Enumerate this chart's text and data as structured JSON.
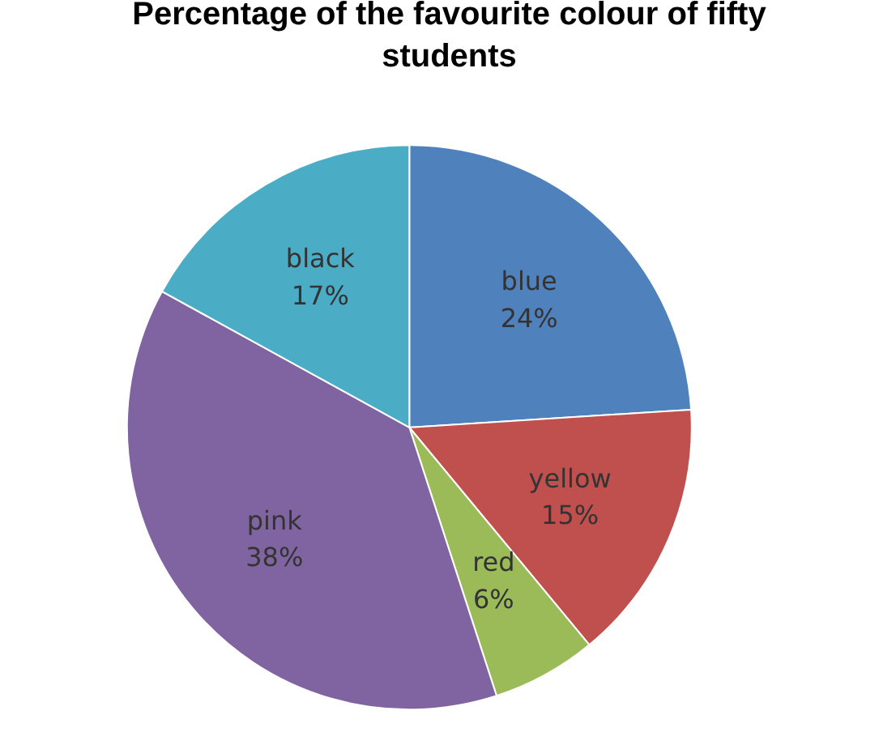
{
  "chart_data": {
    "type": "pie",
    "title": "Percentage of the favourite colour of fifty students",
    "categories": [
      "blue",
      "yellow",
      "red",
      "pink",
      "black"
    ],
    "values": [
      24,
      15,
      6,
      38,
      17
    ],
    "colors": [
      "#4f81bd",
      "#c0504d",
      "#9bbb59",
      "#8064a2",
      "#4bacc6"
    ],
    "value_labels": [
      "24%",
      "15%",
      "6%",
      "38%",
      "17%"
    ]
  }
}
